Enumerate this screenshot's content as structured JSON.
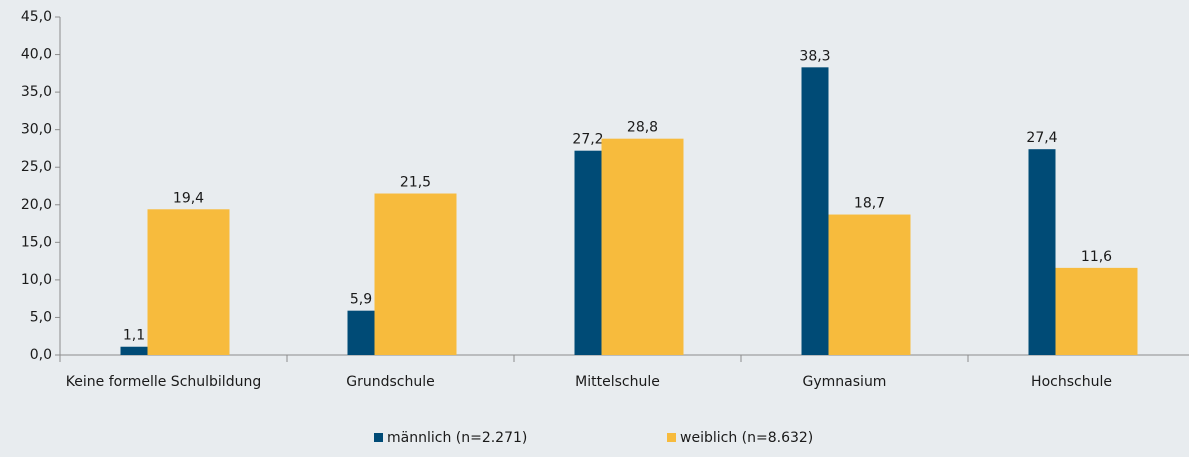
{
  "chart_data": {
    "type": "bar",
    "categories": [
      "Keine formelle Schulbildung",
      "Grundschule",
      "Mittelschule",
      "Gymnasium",
      "Hochschule"
    ],
    "series": [
      {
        "name": "männlich (n=2.271)",
        "color": "#004b76",
        "values": [
          1.1,
          5.9,
          27.2,
          38.3,
          27.4
        ],
        "value_labels": [
          "1,1",
          "5,9",
          "27,2",
          "38,3",
          "27,4"
        ]
      },
      {
        "name": "weiblich (n=8.632)",
        "color": "#f7bb3d",
        "values": [
          19.4,
          21.5,
          28.8,
          18.7,
          11.6
        ],
        "value_labels": [
          "19,4",
          "21,5",
          "28,8",
          "18,7",
          "11,6"
        ]
      }
    ],
    "ylim": [
      0,
      45
    ],
    "yticks": [
      {
        "value": 0,
        "label": "0,0"
      },
      {
        "value": 5,
        "label": "5,0"
      },
      {
        "value": 10,
        "label": "10,0"
      },
      {
        "value": 15,
        "label": "15,0"
      },
      {
        "value": 20,
        "label": "20,0"
      },
      {
        "value": 25,
        "label": "25,0"
      },
      {
        "value": 30,
        "label": "30,0"
      },
      {
        "value": 35,
        "label": "35,0"
      },
      {
        "value": 40,
        "label": "40,0"
      },
      {
        "value": 45,
        "label": "45,0"
      }
    ],
    "legend": "bottom"
  }
}
